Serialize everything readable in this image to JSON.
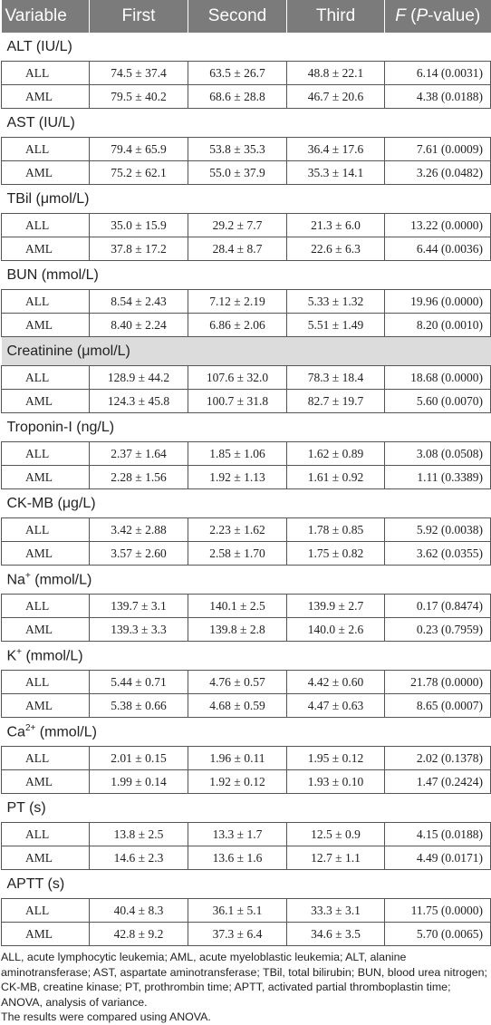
{
  "header": {
    "variable": "Variable",
    "first": "First",
    "second": "Second",
    "third": "Third",
    "f_italic": "F",
    "f_rest": " (P-value)",
    "f_italic2": "P",
    "f_tail": "-value)"
  },
  "groups": [
    {
      "name": "ALT (IU/L)",
      "rows": [
        {
          "label": "ALL",
          "first": "74.5 ± 37.4",
          "second": "63.5 ± 26.7",
          "third": "48.8 ± 22.1",
          "f": "6.14 (0.0031)"
        },
        {
          "label": "AML",
          "first": "79.5 ± 40.2",
          "second": "68.6 ± 28.8",
          "third": "46.7 ± 20.6",
          "f": "4.38 (0.0188)"
        }
      ]
    },
    {
      "name": "AST (IU/L)",
      "rows": [
        {
          "label": "ALL",
          "first": "79.4 ± 65.9",
          "second": "53.8 ± 35.3",
          "third": "36.4 ± 17.6",
          "f": "7.61 (0.0009)"
        },
        {
          "label": "AML",
          "first": "75.2 ± 62.1",
          "second": "55.0 ± 37.9",
          "third": "35.3 ± 14.1",
          "f": "3.26 (0.0482)"
        }
      ]
    },
    {
      "name": "TBil (μmol/L)",
      "rows": [
        {
          "label": "ALL",
          "first": "35.0 ± 15.9",
          "second": "29.2 ± 7.7",
          "third": "21.3 ± 6.0",
          "f": "13.22 (0.0000)"
        },
        {
          "label": "AML",
          "first": "37.8 ± 17.2",
          "second": "28.4 ± 8.7",
          "third": "22.6 ± 6.3",
          "f": "6.44 (0.0036)"
        }
      ]
    },
    {
      "name": "BUN (mmol/L)",
      "rows": [
        {
          "label": "ALL",
          "first": "8.54 ± 2.43",
          "second": "7.12 ± 2.19",
          "third": "5.33 ± 1.32",
          "f": "19.96 (0.0000)"
        },
        {
          "label": "AML",
          "first": "8.40 ± 2.24",
          "second": "6.86 ± 2.06",
          "third": "5.51 ± 1.49",
          "f": "8.20 (0.0010)"
        }
      ]
    },
    {
      "name": "Creatinine (μmol/L)",
      "shaded": true,
      "rows": [
        {
          "label": "ALL",
          "first": "128.9 ± 44.2",
          "second": "107.6 ± 32.0",
          "third": "78.3 ± 18.4",
          "f": "18.68 (0.0000)"
        },
        {
          "label": "AML",
          "first": "124.3 ± 45.8",
          "second": "100.7 ± 31.8",
          "third": "82.7 ± 19.7",
          "f": "5.60 (0.0070)"
        }
      ]
    },
    {
      "name": "Troponin-I (ng/L)",
      "rows": [
        {
          "label": "ALL",
          "first": "2.37 ± 1.64",
          "second": "1.85 ± 1.06",
          "third": "1.62 ± 0.89",
          "f": "3.08 (0.0508)"
        },
        {
          "label": "AML",
          "first": "2.28 ± 1.56",
          "second": "1.92 ± 1.13",
          "third": "1.61 ± 0.92",
          "f": "1.11 (0.3389)"
        }
      ]
    },
    {
      "name": "CK-MB (μg/L)",
      "rows": [
        {
          "label": "ALL",
          "first": "3.42 ± 2.88",
          "second": "2.23 ± 1.62",
          "third": "1.78 ± 0.85",
          "f": "5.92 (0.0038)"
        },
        {
          "label": "AML",
          "first": "3.57 ± 2.60",
          "second": "2.58 ± 1.70",
          "third": "1.75 ± 0.82",
          "f": "3.62 (0.0355)"
        }
      ]
    },
    {
      "name": "Na",
      "sup": "+",
      "tail": " (mmol/L)",
      "rows": [
        {
          "label": "ALL",
          "first": "139.7 ± 3.1",
          "second": "140.1 ± 2.5",
          "third": "139.9 ± 2.7",
          "f": "0.17 (0.8474)"
        },
        {
          "label": "AML",
          "first": "139.3 ± 3.3",
          "second": "139.8 ± 2.8",
          "third": "140.0 ± 2.6",
          "f": "0.23 (0.7959)"
        }
      ]
    },
    {
      "name": "K",
      "sup": "+",
      "tail": " (mmol/L)",
      "rows": [
        {
          "label": "ALL",
          "first": "5.44 ± 0.71",
          "second": "4.76 ± 0.57",
          "third": "4.42 ± 0.60",
          "f": "21.78 (0.0000)"
        },
        {
          "label": "AML",
          "first": "5.38 ± 0.66",
          "second": "4.68 ± 0.59",
          "third": "4.47 ± 0.63",
          "f": "8.65 (0.0007)"
        }
      ]
    },
    {
      "name": "Ca",
      "sup": "2+",
      "tail": " (mmol/L)",
      "rows": [
        {
          "label": "ALL",
          "first": "2.01 ± 0.15",
          "second": "1.96 ± 0.11",
          "third": "1.95 ± 0.12",
          "f": "2.02 (0.1378)"
        },
        {
          "label": "AML",
          "first": "1.99 ± 0.14",
          "second": "1.92 ± 0.12",
          "third": "1.93 ± 0.10",
          "f": "1.47 (0.2424)"
        }
      ]
    },
    {
      "name": "PT (s)",
      "rows": [
        {
          "label": "ALL",
          "first": "13.8 ± 2.5",
          "second": "13.3 ± 1.7",
          "third": "12.5 ± 0.9",
          "f": "4.15 (0.0188)"
        },
        {
          "label": "AML",
          "first": "14.6 ± 2.3",
          "second": "13.6 ± 1.6",
          "third": "12.7 ± 1.1",
          "f": "4.49 (0.0171)"
        }
      ]
    },
    {
      "name": "APTT (s)",
      "rows": [
        {
          "label": "ALL",
          "first": "40.4 ± 8.3",
          "second": "36.1 ± 5.1",
          "third": "33.3 ± 3.1",
          "f": "11.75 (0.0000)"
        },
        {
          "label": "AML",
          "first": "42.8 ± 9.2",
          "second": "37.3 ± 6.4",
          "third": "34.6 ± 3.5",
          "f": "5.70 (0.0065)"
        }
      ]
    }
  ],
  "footnote": {
    "abbrev": "ALL, acute lymphocytic leukemia; AML, acute myeloblastic leukemia; ALT, alanine aminotransferase; AST, aspartate aminotransferase; TBil, total bilirubin; BUN, blood urea nitrogen; CK-MB, creatine kinase; PT, prothrombin time; APTT, activated partial thromboplastin time; ANOVA, analysis of variance.",
    "method": "The results were compared using ANOVA."
  }
}
